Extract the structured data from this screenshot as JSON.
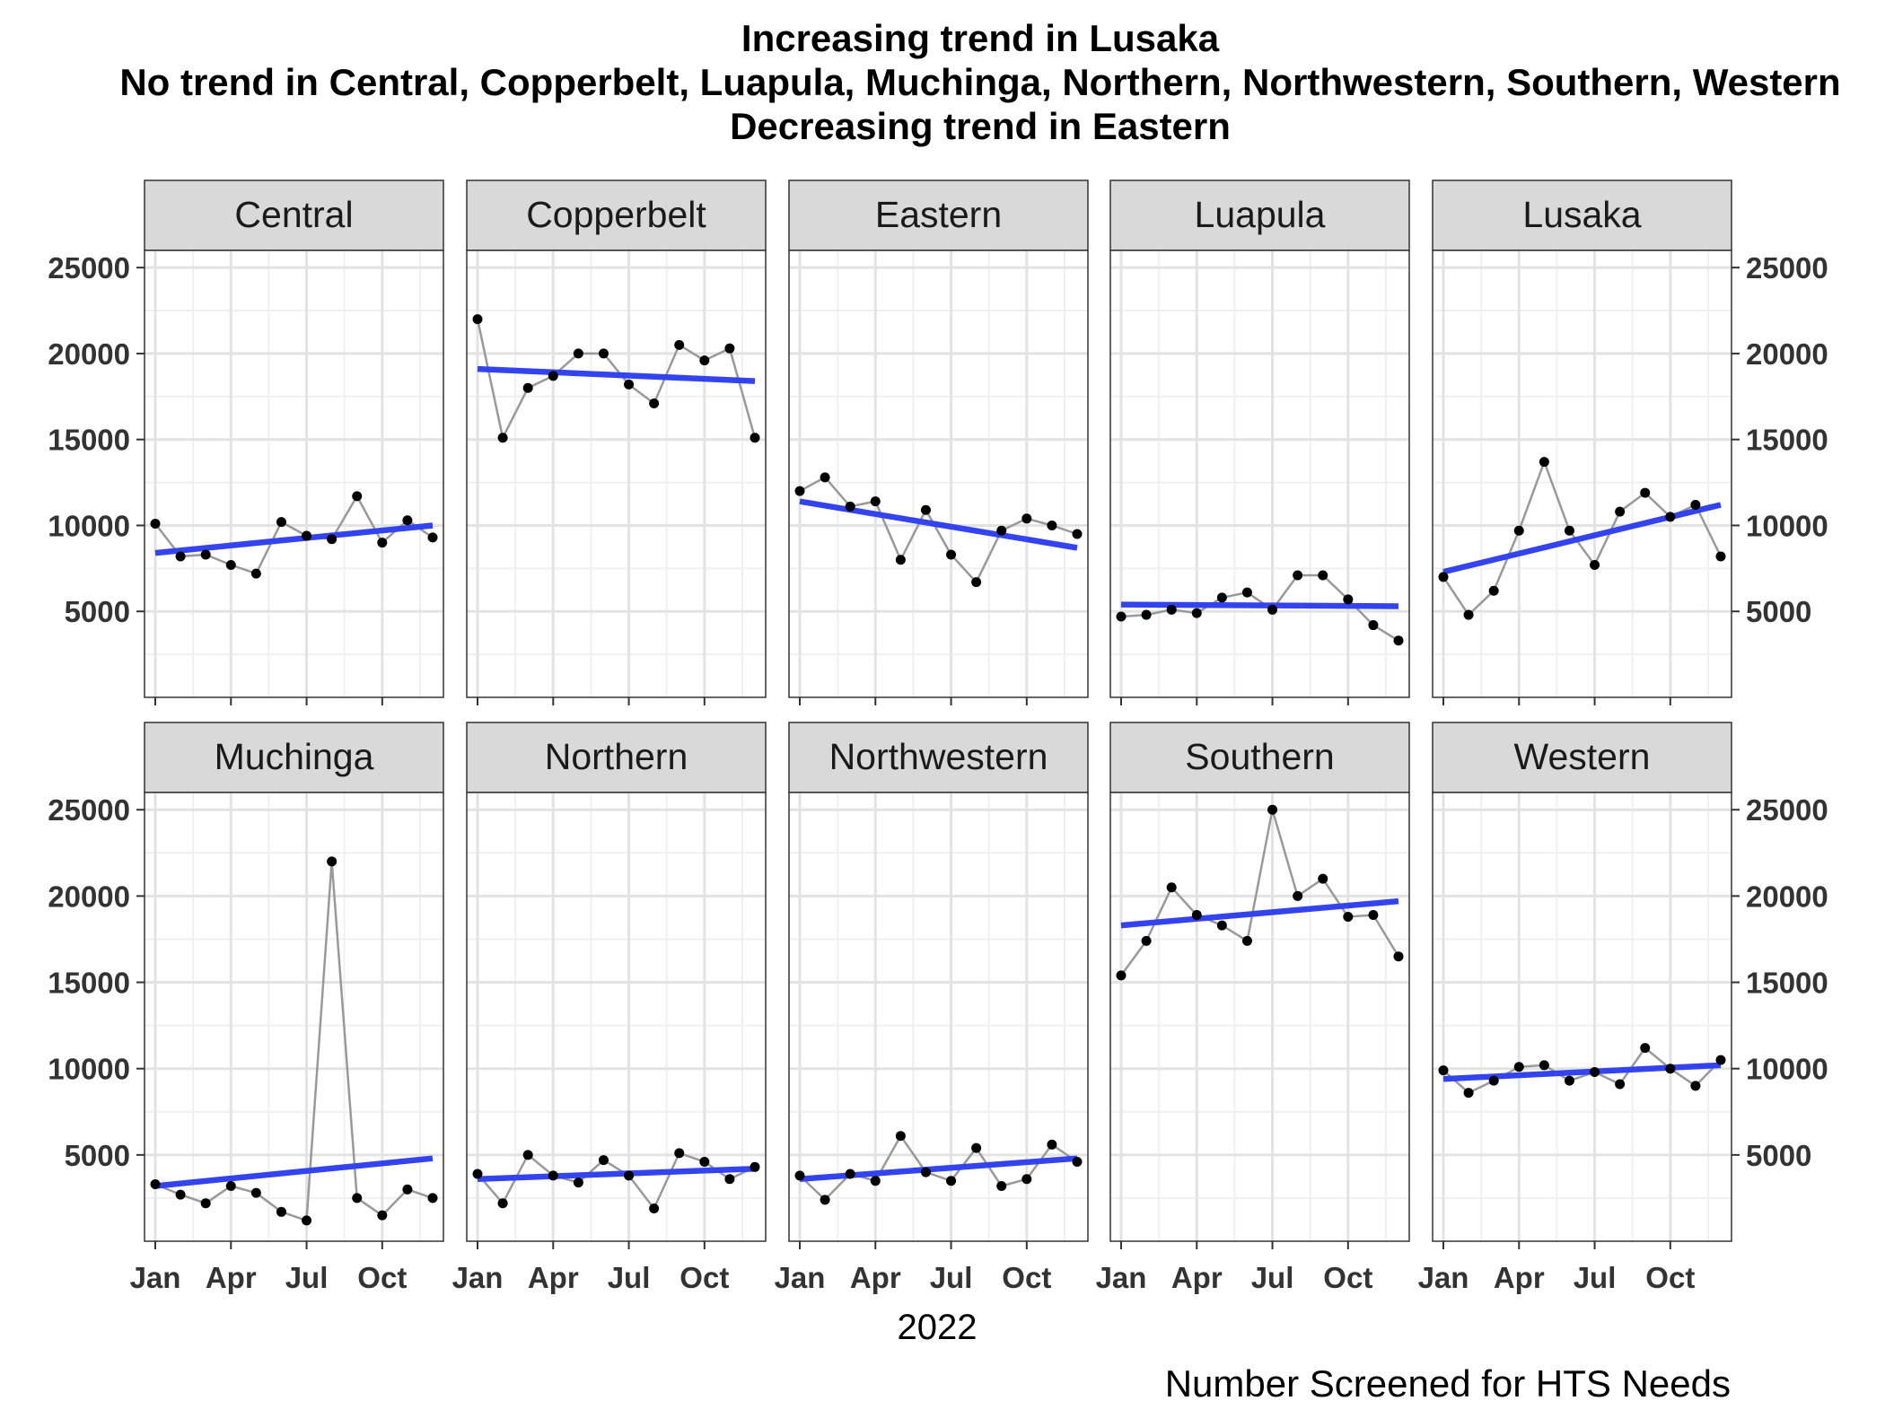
{
  "chart_data": {
    "type": "line",
    "title": [
      "Increasing trend in Lusaka",
      "No trend in Central, Copperbelt, Luapula, Muchinga, Northern, Northwestern, Southern, Western",
      "Decreasing trend in Eastern"
    ],
    "xlabel": "2022",
    "ylabel": "",
    "caption": "Number Screened for HTS Needs",
    "x_ticks": [
      "Jan",
      "Apr",
      "Jul",
      "Oct"
    ],
    "y_ticks": [
      5000,
      10000,
      15000,
      20000,
      25000
    ],
    "ylim": [
      0,
      26000
    ],
    "months": [
      "Jan",
      "Feb",
      "Mar",
      "Apr",
      "May",
      "Jun",
      "Jul",
      "Aug",
      "Sep",
      "Oct",
      "Nov",
      "Dec"
    ],
    "grid": true,
    "colors": {
      "trend": "#3344ee",
      "series": "#999999",
      "points": "#000000",
      "strip": "#d9d9d9"
    },
    "panels": [
      {
        "name": "Central",
        "values": [
          10100,
          8200,
          8300,
          7700,
          7200,
          10200,
          9400,
          9200,
          11700,
          9000,
          10300,
          9300
        ],
        "trend": [
          8400,
          10000
        ]
      },
      {
        "name": "Copperbelt",
        "values": [
          22000,
          15100,
          18000,
          18700,
          20000,
          20000,
          18200,
          17100,
          20500,
          19600,
          20300,
          15100
        ],
        "trend": [
          19100,
          18400
        ]
      },
      {
        "name": "Eastern",
        "values": [
          12000,
          12800,
          11100,
          11400,
          8000,
          10900,
          8300,
          6700,
          9700,
          10400,
          10000,
          9500
        ],
        "trend": [
          11400,
          8700
        ]
      },
      {
        "name": "Luapula",
        "values": [
          4700,
          4800,
          5100,
          4900,
          5800,
          6100,
          5100,
          7100,
          7100,
          5700,
          4200,
          3300
        ],
        "trend": [
          5400,
          5300
        ]
      },
      {
        "name": "Lusaka",
        "values": [
          7000,
          4800,
          6200,
          9700,
          13700,
          9700,
          7700,
          10800,
          11900,
          10500,
          11200,
          8200
        ],
        "trend": [
          7300,
          11200
        ]
      },
      {
        "name": "Muchinga",
        "values": [
          3300,
          2700,
          2200,
          3200,
          2800,
          1700,
          1200,
          22000,
          2500,
          1500,
          3000,
          2500
        ],
        "trend": [
          3200,
          4800
        ]
      },
      {
        "name": "Northern",
        "values": [
          3900,
          2200,
          5000,
          3800,
          3400,
          4700,
          3800,
          1900,
          5100,
          4600,
          3600,
          4300
        ],
        "trend": [
          3600,
          4200
        ]
      },
      {
        "name": "Northwestern",
        "values": [
          3800,
          2400,
          3900,
          3500,
          6100,
          4000,
          3500,
          5400,
          3200,
          3600,
          5600,
          4600
        ],
        "trend": [
          3600,
          4800
        ]
      },
      {
        "name": "Southern",
        "values": [
          15400,
          17400,
          20500,
          18900,
          18300,
          17400,
          25000,
          20000,
          21000,
          18800,
          18900,
          16500
        ],
        "trend": [
          18300,
          19700
        ]
      },
      {
        "name": "Western",
        "values": [
          9900,
          8600,
          9300,
          10100,
          10200,
          9300,
          9800,
          9100,
          11200,
          10000,
          9000,
          10500
        ],
        "trend": [
          9400,
          10200
        ]
      }
    ]
  }
}
